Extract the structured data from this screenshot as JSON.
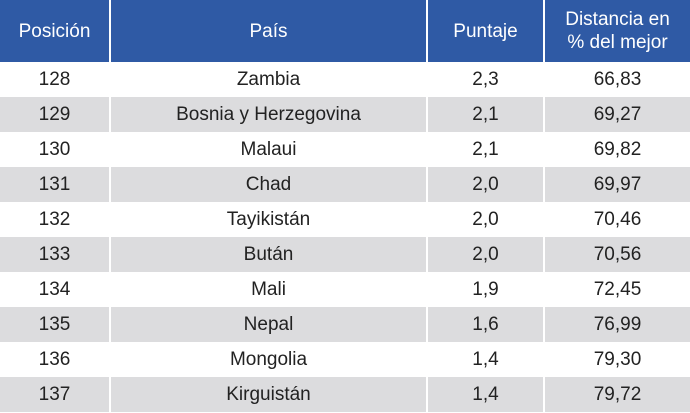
{
  "header": {
    "posicion": "Posición",
    "pais": "País",
    "puntaje": "Puntaje",
    "distancia_line1": "Distancia en",
    "distancia_line2": "% del mejor"
  },
  "rows": [
    {
      "posicion": "128",
      "pais": "Zambia",
      "puntaje": "2,3",
      "distancia": "66,83"
    },
    {
      "posicion": "129",
      "pais": "Bosnia y Herzegovina",
      "puntaje": "2,1",
      "distancia": "69,27"
    },
    {
      "posicion": "130",
      "pais": "Malaui",
      "puntaje": "2,1",
      "distancia": "69,82"
    },
    {
      "posicion": "131",
      "pais": "Chad",
      "puntaje": "2,0",
      "distancia": "69,97"
    },
    {
      "posicion": "132",
      "pais": "Tayikistán",
      "puntaje": "2,0",
      "distancia": "70,46"
    },
    {
      "posicion": "133",
      "pais": "Bután",
      "puntaje": "2,0",
      "distancia": "70,56"
    },
    {
      "posicion": "134",
      "pais": "Mali",
      "puntaje": "1,9",
      "distancia": "72,45"
    },
    {
      "posicion": "135",
      "pais": "Nepal",
      "puntaje": "1,6",
      "distancia": "76,99"
    },
    {
      "posicion": "136",
      "pais": "Mongolia",
      "puntaje": "1,4",
      "distancia": "79,30"
    },
    {
      "posicion": "137",
      "pais": "Kirguistán",
      "puntaje": "1,4",
      "distancia": "79,72"
    }
  ],
  "colors": {
    "header_bg": "#2f5aa5",
    "row_shaded": "#dcdcde",
    "row_plain": "#ffffff"
  }
}
